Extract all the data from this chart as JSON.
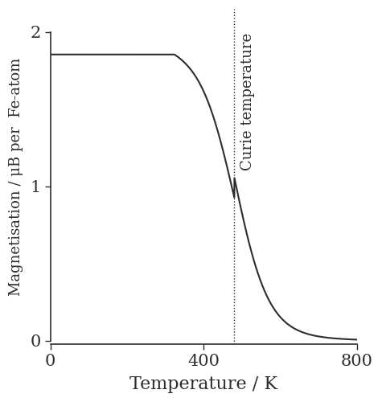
{
  "xlabel": "Temperature / K",
  "ylabel": "Magnetisation / μB per  Fe-atom",
  "xlim": [
    0,
    800
  ],
  "ylim": [
    -0.02,
    2.15
  ],
  "yticks": [
    0,
    1,
    2
  ],
  "xticks": [
    0,
    400,
    800
  ],
  "curie_temp": 480,
  "curie_label": "Curie temperature",
  "T_start": 0,
  "T_end": 800,
  "M0": 1.855,
  "Tc": 480,
  "line_color": "#2d2d2d",
  "background_color": "#ffffff",
  "xlabel_fontsize": 16,
  "ylabel_fontsize": 13,
  "tick_fontsize": 15,
  "curie_label_fontsize": 13
}
